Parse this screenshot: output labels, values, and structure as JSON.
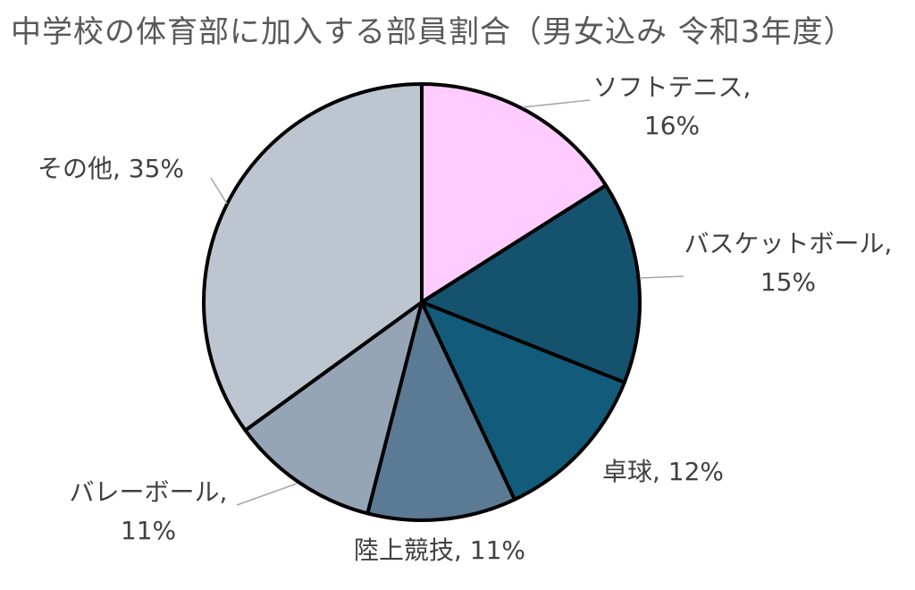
{
  "chart_data": {
    "type": "pie",
    "title": "中学校の体育部に加入する部員割合（男女込み 令和3年度）",
    "slices": [
      {
        "label": "ソフトテニス",
        "value": 16,
        "value_label": "16%",
        "color": "#FFCCFF"
      },
      {
        "label": "バスケットボール",
        "value": 15,
        "value_label": "15%",
        "color": "#15526E"
      },
      {
        "label": "卓球",
        "value": 12,
        "value_label": "12%",
        "color": "#135B7B"
      },
      {
        "label": "陸上競技",
        "value": 11,
        "value_label": "11%",
        "color": "#5B7A93"
      },
      {
        "label": "バレーボール",
        "value": 11,
        "value_label": "11%",
        "color": "#96A5B6"
      },
      {
        "label": "その他",
        "value": 35,
        "value_label": "35%",
        "color": "#BDC5D0"
      }
    ],
    "legend": "none",
    "start_angle_deg": 0,
    "direction": "clockwise"
  }
}
